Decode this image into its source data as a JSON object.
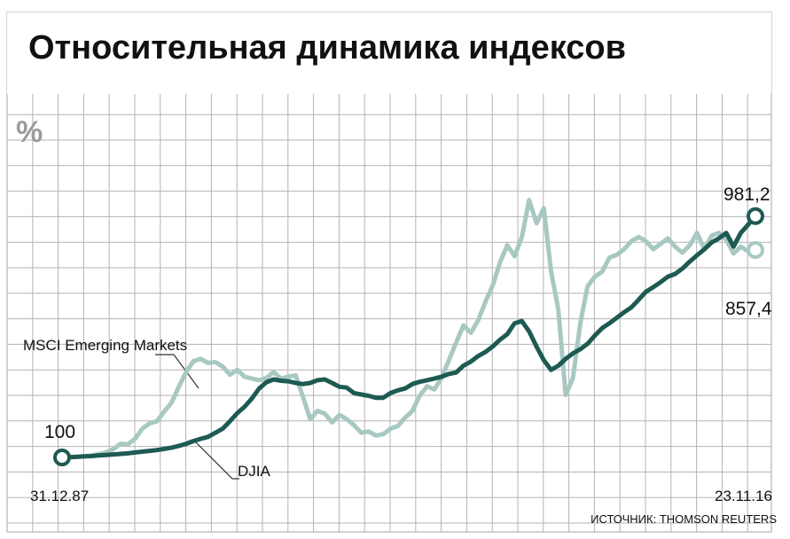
{
  "chart_data": {
    "type": "line",
    "title": "Относительная динамика индексов",
    "unit": "%",
    "source": "ИСТОЧНИК: THOMSON REUTERS",
    "start_label": "31.12.87",
    "end_label": "23.11.16",
    "start_value_label": "100",
    "ylim": [
      0,
      1200
    ],
    "grid": true,
    "colors": {
      "msci": "#a8c8c2",
      "djia": "#1d5a52",
      "grid": "#b3b3b3",
      "title_bg": "#ffffff"
    },
    "series": [
      {
        "name": "MSCI Emerging Markets",
        "end_value_label": "857,4",
        "values": [
          100,
          101,
          103,
          104,
          107,
          112,
          118,
          130,
          150,
          148,
          168,
          205,
          225,
          232,
          268,
          300,
          358,
          412,
          452,
          460,
          445,
          448,
          432,
          402,
          420,
          395,
          388,
          382,
          390,
          412,
          388,
          395,
          400,
          322,
          240,
          270,
          260,
          228,
          255,
          240,
          218,
          190,
          195,
          180,
          185,
          205,
          215,
          245,
          270,
          325,
          360,
          348,
          390,
          455,
          520,
          582,
          555,
          600,
          668,
          728,
          812,
          875,
          835,
          905,
          1040,
          955,
          1010,
          780,
          640,
          328,
          390,
          588,
          725,
          760,
          778,
          830,
          840,
          860,
          890,
          905,
          890,
          860,
          880,
          900,
          870,
          848,
          875,
          920,
          860,
          910,
          920,
          895,
          845,
          870,
          852,
          857.4
        ]
      },
      {
        "name": "DJIA",
        "end_value_label": "981,2",
        "values": [
          100,
          101,
          102,
          104,
          105,
          107,
          109,
          111,
          113,
          115,
          118,
          121,
          124,
          127,
          131,
          136,
          142,
          150,
          160,
          168,
          175,
          190,
          205,
          232,
          262,
          285,
          315,
          352,
          375,
          385,
          380,
          378,
          372,
          368,
          372,
          382,
          385,
          372,
          358,
          355,
          335,
          330,
          325,
          318,
          318,
          335,
          345,
          352,
          368,
          376,
          382,
          388,
          395,
          405,
          410,
          435,
          450,
          470,
          485,
          505,
          530,
          550,
          590,
          598,
          560,
          505,
          455,
          420,
          435,
          460,
          480,
          495,
          515,
          545,
          572,
          590,
          610,
          630,
          648,
          676,
          705,
          722,
          740,
          760,
          770,
          790,
          815,
          838,
          860,
          885,
          900,
          920,
          870,
          920,
          950,
          981.2
        ]
      }
    ]
  }
}
